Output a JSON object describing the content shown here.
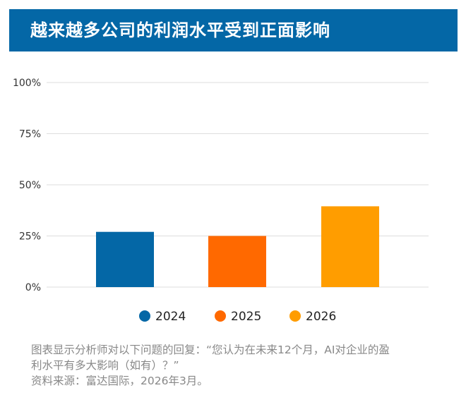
{
  "title": "越来越多公司的利润水平受到正面影响",
  "colors": {
    "title_bg": "#0467a6",
    "grid": "#dddddd"
  },
  "chart_data": {
    "type": "bar",
    "categories": [
      "2024",
      "2025",
      "2026"
    ],
    "values": [
      27,
      25,
      39.5
    ],
    "colors": [
      "#0467a6",
      "#ff6900",
      "#ff9d00"
    ],
    "ylim": [
      0,
      100
    ],
    "yticks": [
      0,
      25,
      50,
      75,
      100
    ],
    "ytick_labels": [
      "0%",
      "25%",
      "50%",
      "75%",
      "100%"
    ],
    "grid": true,
    "legend": [
      "2024",
      "2025",
      "2026"
    ],
    "legend_position": "bottom"
  },
  "footnote": {
    "line1": "图表显示分析师对以下问题的回复：“您认为在未来12个月，AI对企业的盈",
    "line2": "利水平有多大影响（如有）？”",
    "line3": "资料来源：富达国际，2026年3月。"
  }
}
